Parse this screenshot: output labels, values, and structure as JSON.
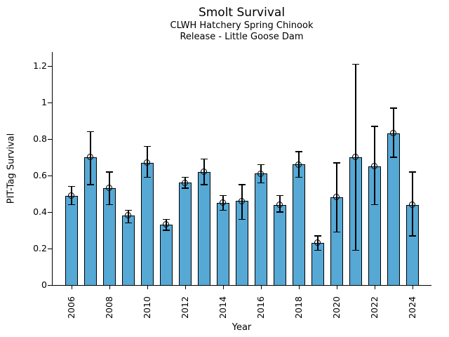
{
  "figure": {
    "title": "Smolt Survival",
    "subtitle1": "CLWH Hatchery Spring Chinook",
    "subtitle2": "Release - Little Goose Dam"
  },
  "chart_data": {
    "type": "bar",
    "title": "Smolt Survival",
    "subtitle1": "CLWH Hatchery Spring Chinook",
    "subtitle2": "Release - Little Goose Dam",
    "xlabel": "Year",
    "ylabel": "PIT-Tag Survival",
    "categories": [
      "2006",
      "2007",
      "2008",
      "2009",
      "2010",
      "2011",
      "2012",
      "2013",
      "2014",
      "2015",
      "2016",
      "2017",
      "2018",
      "2019",
      "2020",
      "2021",
      "2022",
      "2023",
      "2024"
    ],
    "values": [
      0.49,
      0.7,
      0.53,
      0.38,
      0.67,
      0.33,
      0.56,
      0.62,
      0.45,
      0.46,
      0.61,
      0.44,
      0.66,
      0.23,
      0.48,
      0.7,
      0.65,
      0.83,
      0.44
    ],
    "error_low": [
      0.44,
      0.55,
      0.44,
      0.34,
      0.59,
      0.3,
      0.53,
      0.55,
      0.41,
      0.36,
      0.56,
      0.4,
      0.59,
      0.19,
      0.29,
      0.19,
      0.44,
      0.7,
      0.27
    ],
    "error_high": [
      0.54,
      0.84,
      0.62,
      0.41,
      0.76,
      0.36,
      0.59,
      0.69,
      0.49,
      0.55,
      0.66,
      0.49,
      0.73,
      0.27,
      0.67,
      1.21,
      0.87,
      0.97,
      0.62
    ],
    "ytick_values": [
      0,
      0.2,
      0.4,
      0.6,
      0.8,
      1.0,
      1.2
    ],
    "ytick_labels": [
      "0",
      "0.2",
      "0.4",
      "0.6",
      "0.8",
      "1",
      "1.2"
    ],
    "xtick_labels": [
      "2006",
      "2008",
      "2010",
      "2012",
      "2014",
      "2016",
      "2018",
      "2020",
      "2022",
      "2024"
    ],
    "ylim": [
      0,
      1.28
    ],
    "grid": false,
    "legend_position": "none",
    "bar_color": "#56a8d5",
    "bar_edge_color": "#000000",
    "error_color": "#000000",
    "marker": "open-circle"
  }
}
